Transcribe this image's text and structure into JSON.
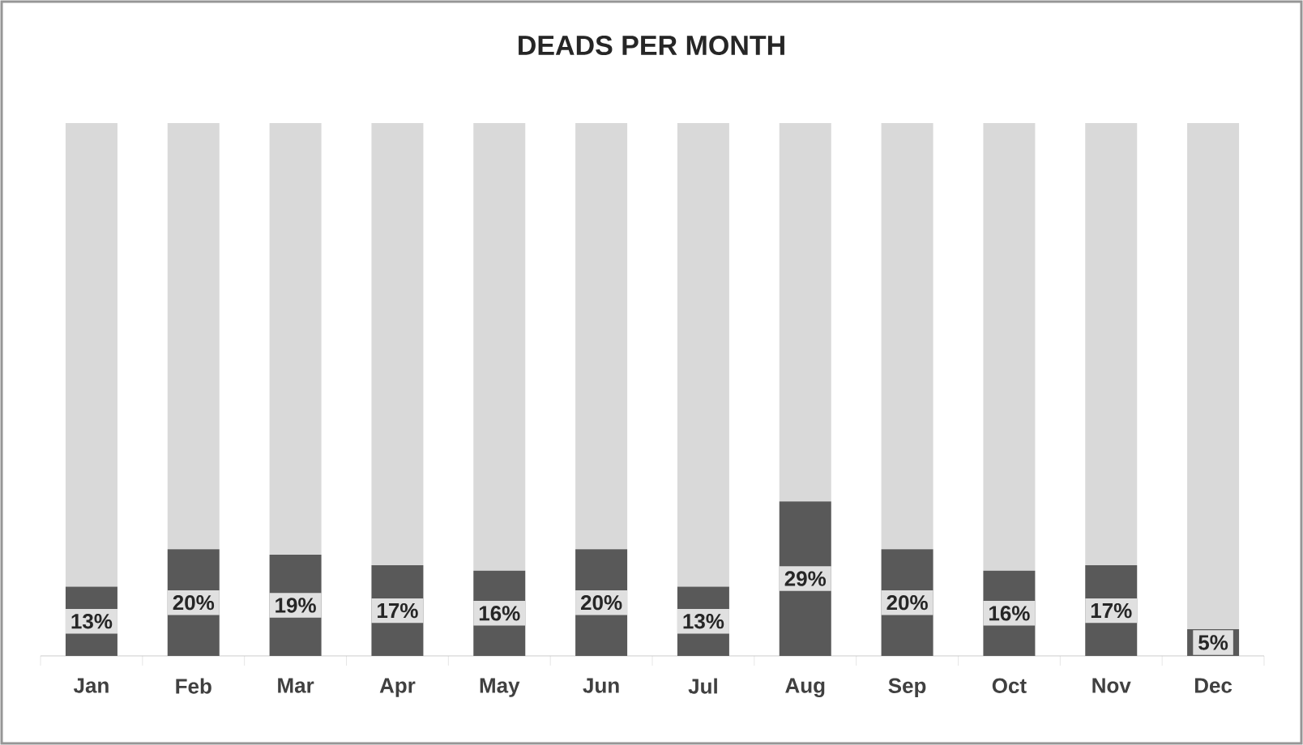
{
  "chart_data": {
    "type": "bar",
    "title": "DEADS PER MONTH",
    "categories": [
      "Jan",
      "Feb",
      "Mar",
      "Apr",
      "May",
      "Jun",
      "Jul",
      "Aug",
      "Sep",
      "Oct",
      "Nov",
      "Dec"
    ],
    "stacked": true,
    "tick_labels": "x",
    "series": [
      {
        "color": "#595959",
        "values": [
          13,
          20,
          19,
          17,
          16,
          20,
          13,
          29,
          20,
          16,
          17,
          5
        ],
        "value_labels": [
          "13%",
          "20%",
          "19%",
          "17%",
          "16%",
          "20%",
          "13%",
          "29%",
          "20%",
          "16%",
          "17%",
          "5%"
        ]
      },
      {
        "color": "#d9d9d9",
        "values": [
          87,
          80,
          81,
          83,
          84,
          80,
          87,
          71,
          80,
          84,
          83,
          95
        ]
      }
    ]
  }
}
